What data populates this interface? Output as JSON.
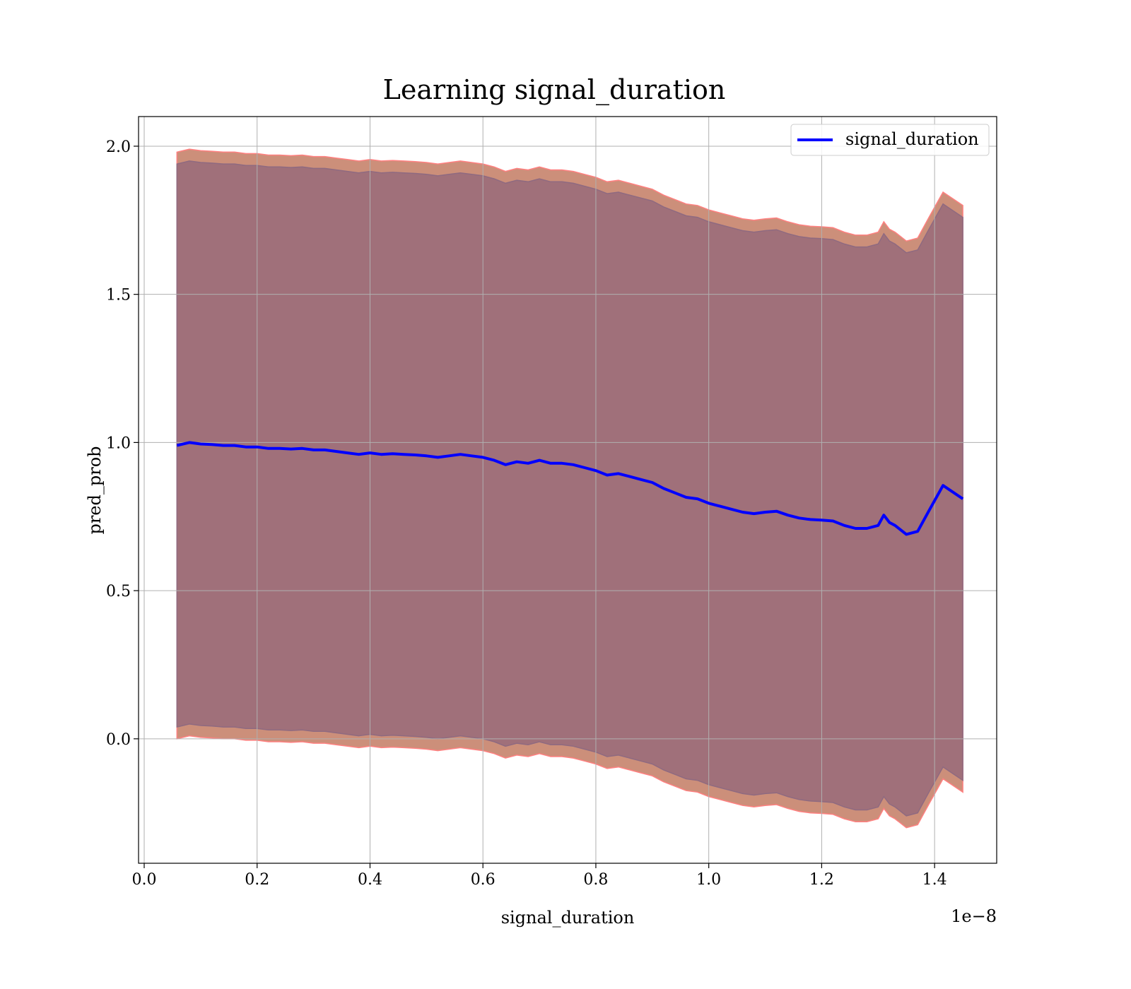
{
  "chart_data": {
    "type": "line",
    "title": "Learning signal_duration",
    "xlabel": "signal_duration",
    "ylabel": "pred_prob",
    "x_offset_label": "1e−8",
    "xlim": [
      -0.01,
      1.51
    ],
    "ylim": [
      -0.42,
      2.1
    ],
    "x_ticks": [
      0.0,
      0.2,
      0.4,
      0.6,
      0.8,
      1.0,
      1.2,
      1.4
    ],
    "x_tick_labels": [
      "0.0",
      "0.2",
      "0.4",
      "0.6",
      "0.8",
      "1.0",
      "1.2",
      "1.4"
    ],
    "y_ticks": [
      0.0,
      0.5,
      1.0,
      1.5,
      2.0
    ],
    "y_tick_labels": [
      "0.0",
      "0.5",
      "1.0",
      "1.5",
      "2.0"
    ],
    "grid": true,
    "legend_position": "top-right",
    "series": [
      {
        "name": "signal_duration",
        "color": "#0000ff",
        "x": [
          0.058,
          0.08,
          0.1,
          0.12,
          0.14,
          0.16,
          0.18,
          0.2,
          0.22,
          0.24,
          0.26,
          0.28,
          0.3,
          0.32,
          0.34,
          0.36,
          0.38,
          0.4,
          0.42,
          0.44,
          0.46,
          0.48,
          0.5,
          0.52,
          0.54,
          0.56,
          0.58,
          0.6,
          0.62,
          0.64,
          0.66,
          0.68,
          0.7,
          0.72,
          0.74,
          0.76,
          0.78,
          0.8,
          0.82,
          0.84,
          0.86,
          0.88,
          0.9,
          0.92,
          0.94,
          0.96,
          0.98,
          1.0,
          1.02,
          1.04,
          1.06,
          1.08,
          1.1,
          1.12,
          1.14,
          1.16,
          1.18,
          1.2,
          1.22,
          1.24,
          1.26,
          1.28,
          1.3,
          1.31,
          1.32,
          1.33,
          1.35,
          1.37,
          1.39,
          1.415,
          1.45
        ],
        "y": [
          0.99,
          1.0,
          0.995,
          0.993,
          0.99,
          0.99,
          0.985,
          0.985,
          0.98,
          0.98,
          0.978,
          0.98,
          0.975,
          0.975,
          0.97,
          0.965,
          0.96,
          0.965,
          0.96,
          0.962,
          0.96,
          0.958,
          0.955,
          0.95,
          0.955,
          0.96,
          0.955,
          0.95,
          0.94,
          0.925,
          0.935,
          0.93,
          0.94,
          0.93,
          0.93,
          0.925,
          0.915,
          0.905,
          0.89,
          0.895,
          0.885,
          0.875,
          0.865,
          0.845,
          0.83,
          0.815,
          0.81,
          0.795,
          0.785,
          0.775,
          0.765,
          0.76,
          0.765,
          0.768,
          0.755,
          0.745,
          0.74,
          0.738,
          0.735,
          0.72,
          0.71,
          0.71,
          0.72,
          0.755,
          0.73,
          0.72,
          0.69,
          0.7,
          0.77,
          0.855,
          0.81
        ]
      }
    ],
    "bands": [
      {
        "color": "#cc8f7a",
        "edge_color": "#ff8080",
        "offset": 0.99
      },
      {
        "color": "#a0707a",
        "edge_color": "#8f6a80",
        "offset": 0.95
      }
    ]
  },
  "legend": {
    "label": "signal_duration"
  }
}
